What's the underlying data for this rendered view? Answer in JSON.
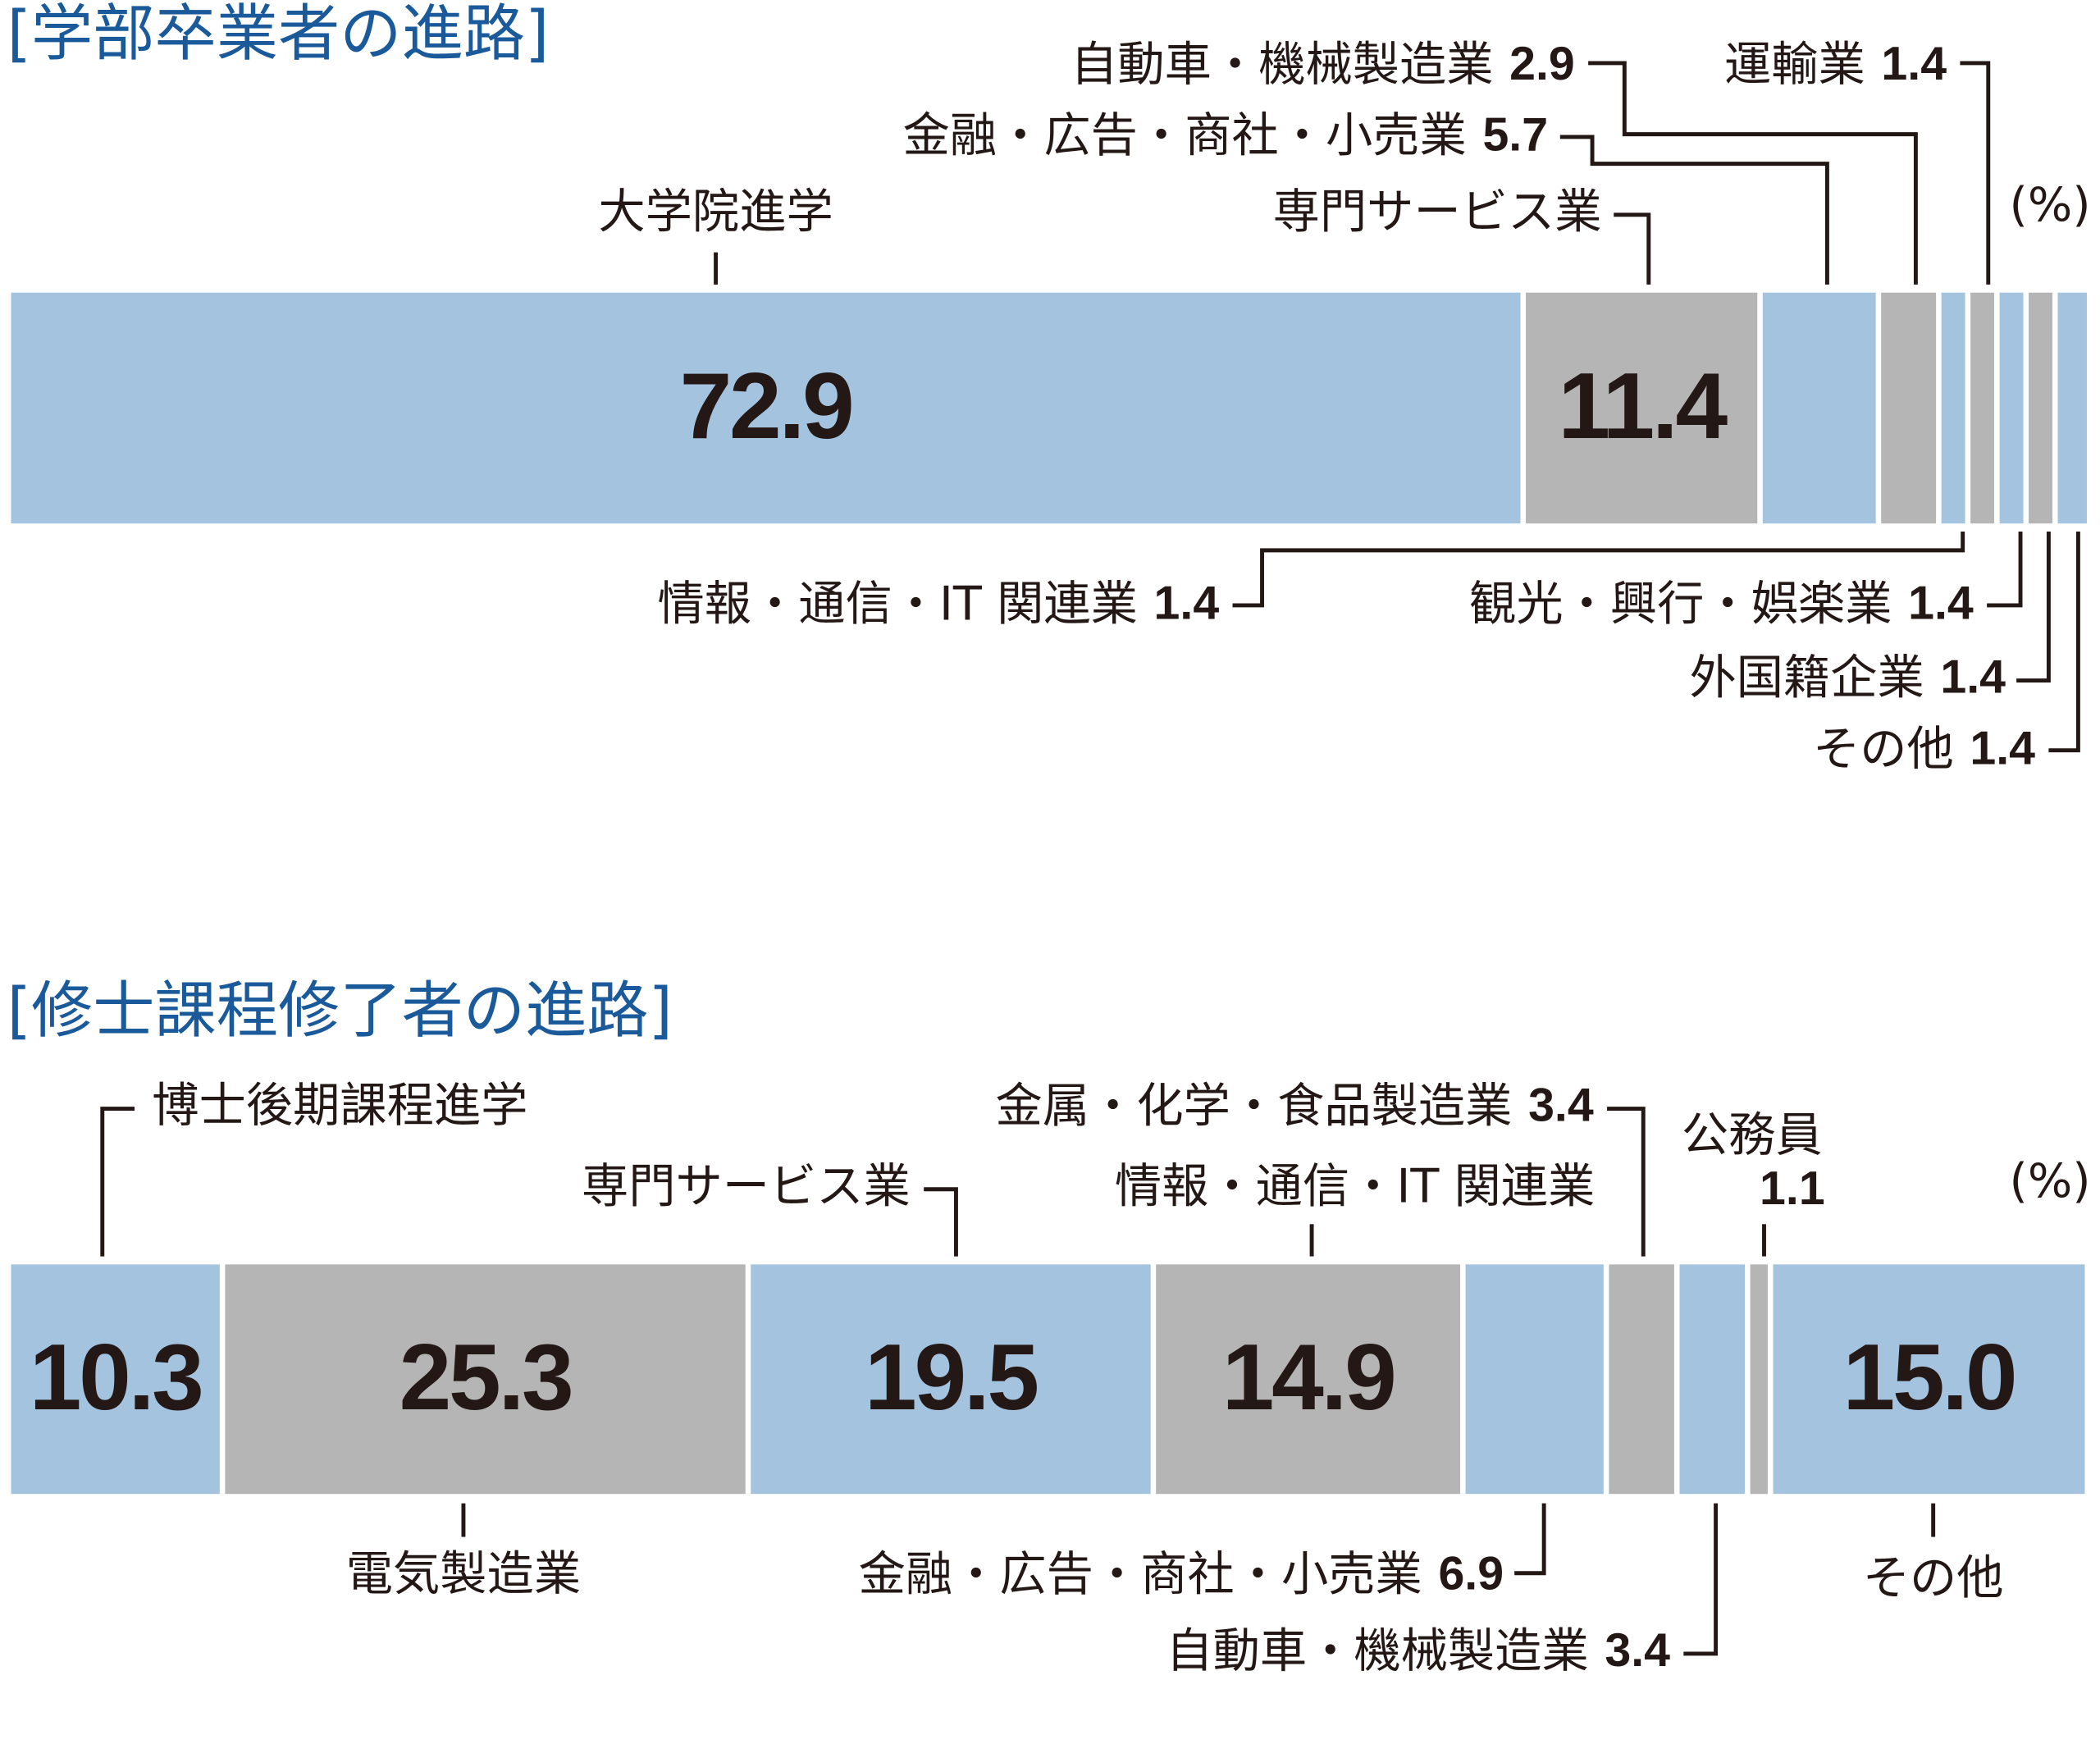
{
  "chart_data": [
    {
      "type": "stacked_bar",
      "title": "[学部卒業者の進路]",
      "unit": "(%)",
      "xlim": [
        0,
        100
      ],
      "categories": [
        "大学院進学",
        "専門サービス業",
        "金融・広告・商社・小売業",
        "自動車・機械製造業",
        "情報・通信・IT 関連業",
        "運輸業",
        "観光・興行・娯楽業",
        "外国籍企業",
        "その他"
      ],
      "values": [
        72.9,
        11.4,
        5.7,
        2.9,
        1.4,
        1.4,
        1.4,
        1.4,
        1.4
      ],
      "colors": [
        "#a3c3df",
        "#b5b5b5",
        "#a3c3df",
        "#b5b5b5",
        "#a3c3df",
        "#b5b5b5",
        "#a3c3df",
        "#b5b5b5",
        "#a3c3df"
      ]
    },
    {
      "type": "stacked_bar",
      "title": "[修士課程修了者の進路]",
      "unit": "(%)",
      "xlim": [
        0,
        100
      ],
      "categories": [
        "博士後期課程進学",
        "電気製造業",
        "専門サービス業",
        "情報・通信・IT 関連業",
        "金融・広告・商社・小売業",
        "金属・化学・食品製造業",
        "自動車・機械製造業",
        "公務員",
        "その他"
      ],
      "values": [
        10.3,
        25.3,
        19.5,
        14.9,
        6.9,
        3.4,
        3.4,
        1.1,
        15.0
      ],
      "value_labels": [
        "10.3",
        "25.3",
        "19.5",
        "14.9",
        "6.9",
        "3.4",
        "3.4",
        "1.1",
        "15.0"
      ],
      "colors": [
        "#a3c3df",
        "#b5b5b5",
        "#a3c3df",
        "#b5b5b5",
        "#a3c3df",
        "#b5b5b5",
        "#a3c3df",
        "#b5b5b5",
        "#a3c3df"
      ]
    }
  ]
}
